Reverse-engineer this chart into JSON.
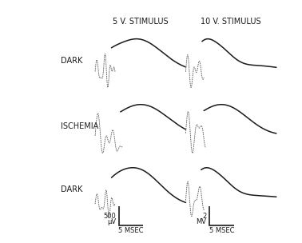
{
  "col_labels": [
    "5 V. STIMULUS",
    "10 V. STIMULUS"
  ],
  "row_labels": [
    "DARK",
    "ISCHEMIA",
    "DARK"
  ],
  "bg_color": "#ffffff",
  "trace_color": "#1a1a1a",
  "dot_color": "#666666",
  "scale_bar_left_amp": "500",
  "scale_bar_left_unit": "μV",
  "scale_bar_right_amp": "2",
  "scale_bar_right_unit": "MV",
  "scale_bar_time": "5 MSEC",
  "fig_width": 3.78,
  "fig_height": 3.04
}
